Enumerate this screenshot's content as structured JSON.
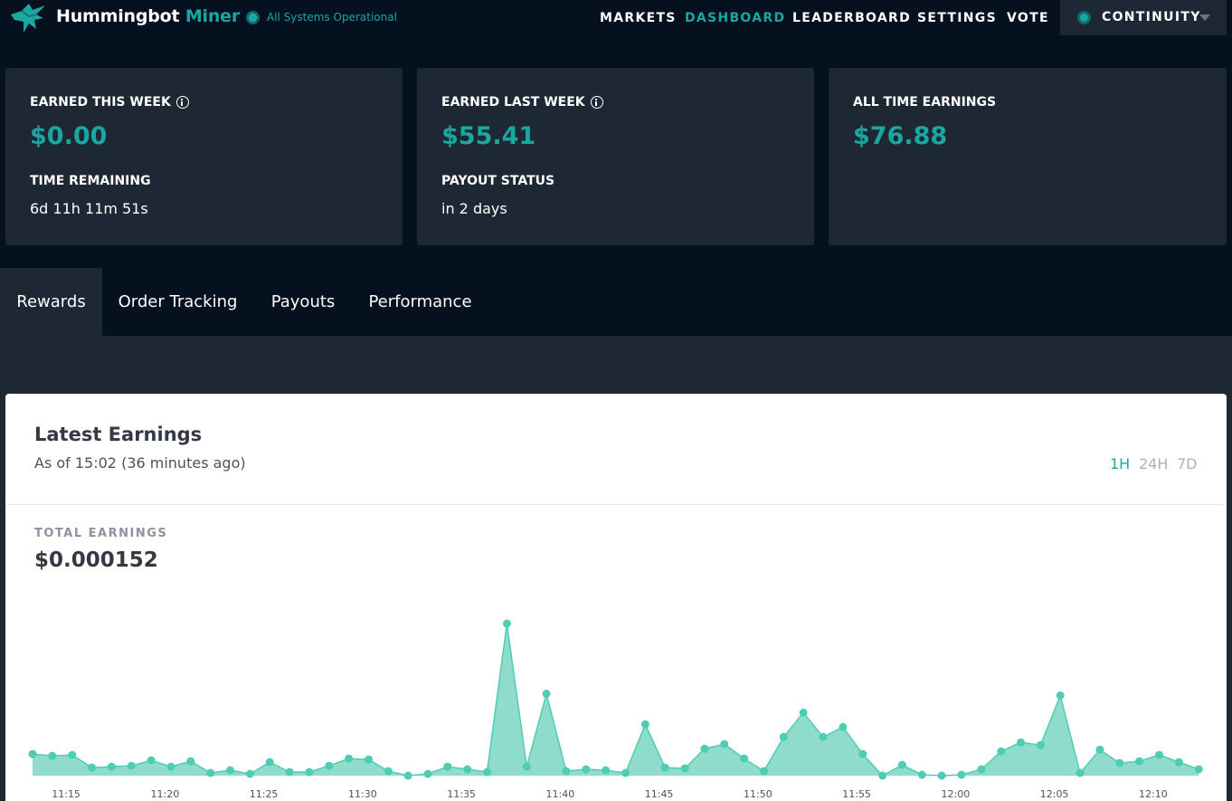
{
  "header": {
    "brand_first": "Hummingbot",
    "brand_second": "Miner",
    "status_text": "All Systems Operational",
    "nav": [
      "MARKETS",
      "DASHBOARD",
      "LEADERBOARD",
      "SETTINGS",
      "VOTE"
    ],
    "active_nav": "DASHBOARD",
    "account_name": "CONTINUITY"
  },
  "cards": [
    {
      "label": "EARNED THIS WEEK",
      "value": "$0.00",
      "sub_label": "TIME REMAINING",
      "sub_value": "6d 11h 11m 51s"
    },
    {
      "label": "EARNED LAST WEEK",
      "value": "$55.41",
      "sub_label": "PAYOUT STATUS",
      "sub_value": "in 2 days"
    },
    {
      "label": "ALL TIME EARNINGS",
      "value": "$76.88"
    }
  ],
  "tabs": [
    "Rewards",
    "Order Tracking",
    "Payouts",
    "Performance"
  ],
  "active_tab": "Rewards",
  "panel": {
    "title": "Latest Earnings",
    "subtitle": "As of 15:02 (36 minutes ago)",
    "ranges": [
      "1H",
      "24H",
      "7D"
    ],
    "active_range": "1H",
    "total_label": "TOTAL EARNINGS",
    "total_value": "$0.000152"
  },
  "colors": {
    "accent": "#1aa7a0",
    "chart_line": "#4ecdb4",
    "chart_fill": "#8fdccb",
    "background": "#061120",
    "card": "#1e2834"
  },
  "chart_data": {
    "type": "area",
    "x_tick_labels": [
      "11:15",
      "11:20",
      "11:25",
      "11:30",
      "11:35",
      "11:40",
      "11:45",
      "11:50",
      "11:55",
      "12:00",
      "12:05",
      "12:10"
    ],
    "x_start_minutes": 13.3,
    "x_step_minutes": 1,
    "values": [
      24,
      22,
      23,
      9,
      10,
      11,
      17,
      10,
      16,
      3,
      6,
      2,
      15,
      4,
      4,
      11,
      19,
      18,
      5,
      0,
      2,
      10,
      7,
      4,
      169,
      10,
      91,
      5,
      7,
      6,
      3,
      57,
      9,
      8,
      30,
      35,
      19,
      5,
      43,
      70,
      43,
      54,
      24,
      0,
      12,
      1,
      0,
      1,
      7,
      27,
      37,
      34,
      89,
      3,
      29,
      14,
      16,
      23,
      15,
      7
    ],
    "ylim": [
      0,
      170
    ],
    "grid": false
  }
}
